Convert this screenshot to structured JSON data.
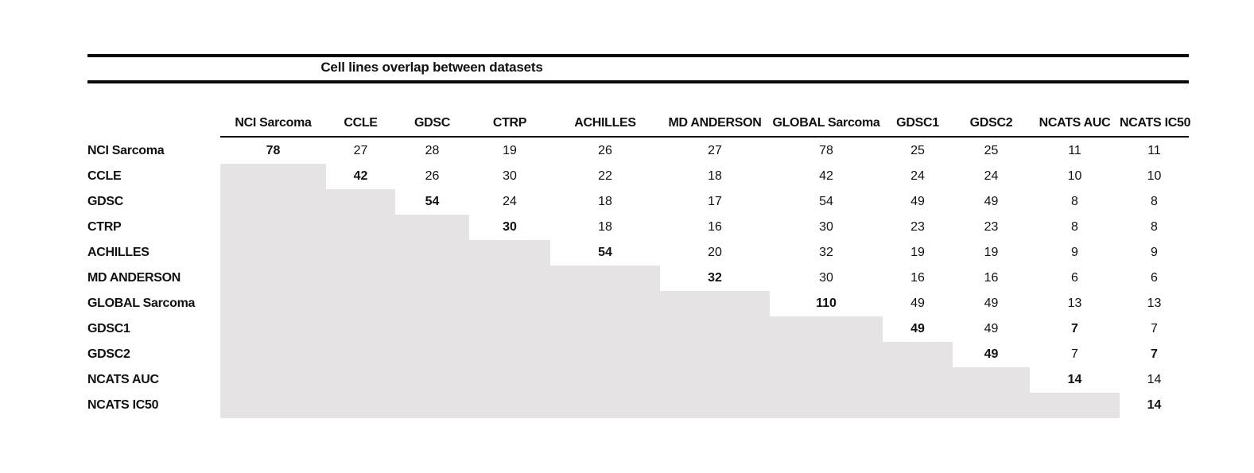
{
  "title": "Cell lines overlap between datasets",
  "colors": {
    "shaded_cell": "#e5e3e3",
    "rule": "#0a0a0a",
    "text": "#111111"
  },
  "matrix": {
    "column_headers": [
      "NCI Sarcoma",
      "CCLE",
      "GDSC",
      "CTRP",
      "ACHILLES",
      "MD ANDERSON",
      "GLOBAL Sarcoma",
      "GDSC1",
      "GDSC2",
      "NCATS AUC",
      "NCATS IC50"
    ],
    "row_headers": [
      "NCI Sarcoma",
      "CCLE",
      "GDSC",
      "CTRP",
      "ACHILLES",
      "MD ANDERSON",
      "GLOBAL Sarcoma",
      "GDSC1",
      "GDSC2",
      "NCATS AUC",
      "NCATS IC50"
    ],
    "values": [
      [
        78,
        27,
        28,
        19,
        26,
        27,
        78,
        25,
        25,
        11,
        11
      ],
      [
        null,
        42,
        26,
        30,
        22,
        18,
        42,
        24,
        24,
        10,
        10
      ],
      [
        null,
        null,
        54,
        24,
        18,
        17,
        54,
        49,
        49,
        8,
        8
      ],
      [
        null,
        null,
        null,
        30,
        18,
        16,
        30,
        23,
        23,
        8,
        8
      ],
      [
        null,
        null,
        null,
        null,
        54,
        20,
        32,
        19,
        19,
        9,
        9
      ],
      [
        null,
        null,
        null,
        null,
        null,
        32,
        30,
        16,
        16,
        6,
        6
      ],
      [
        null,
        null,
        null,
        null,
        null,
        null,
        110,
        49,
        49,
        13,
        13
      ],
      [
        null,
        null,
        null,
        null,
        null,
        null,
        null,
        49,
        49,
        7,
        7
      ],
      [
        null,
        null,
        null,
        null,
        null,
        null,
        null,
        null,
        49,
        7,
        7
      ],
      [
        null,
        null,
        null,
        null,
        null,
        null,
        null,
        null,
        null,
        14,
        14
      ],
      [
        null,
        null,
        null,
        null,
        null,
        null,
        null,
        null,
        null,
        null,
        14
      ]
    ],
    "bold_cells": [
      [
        0,
        0
      ],
      [
        1,
        1
      ],
      [
        2,
        2
      ],
      [
        3,
        3
      ],
      [
        4,
        4
      ],
      [
        5,
        5
      ],
      [
        6,
        6
      ],
      [
        7,
        7
      ],
      [
        8,
        8
      ],
      [
        9,
        9
      ],
      [
        10,
        10
      ],
      [
        7,
        9
      ],
      [
        8,
        10
      ]
    ]
  }
}
